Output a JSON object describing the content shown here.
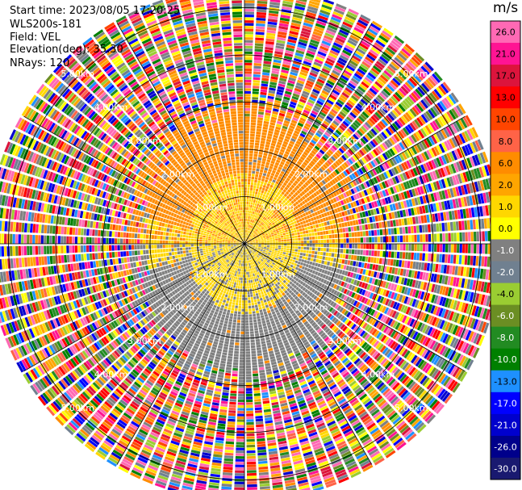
{
  "header": {
    "start_time": "Start time: 2023/08/05 17:20:25",
    "instrument": "WLS200s-181",
    "field": "Field: VEL",
    "elevation": "Elevation(deg): 35.30",
    "nrays": "NRays: 120"
  },
  "chart_data": {
    "type": "heatmap",
    "projection": "polar-ppi",
    "field": "VEL",
    "units": "m/s",
    "range_rings_km": [
      1.0,
      2.0,
      3.0,
      4.0,
      5.0
    ],
    "range_ring_labels": [
      "1.00km",
      "2.00km",
      "3.00km",
      "4.00km",
      "5.00km"
    ],
    "max_range_km": 5.4,
    "nrays": 120,
    "azimuth_spokes_deg": [
      0,
      30,
      60,
      90,
      120,
      150,
      180,
      210,
      240,
      270,
      300,
      330
    ],
    "colorbar": {
      "label": "m/s",
      "ticks": [
        26.0,
        21.0,
        17.0,
        13.0,
        10.0,
        8.0,
        6.0,
        2.0,
        1.0,
        0.0,
        -1.0,
        -2.0,
        -4.0,
        -6.0,
        -8.0,
        -10.0,
        -13.0,
        -17.0,
        -21.0,
        -26.0,
        -30.0
      ],
      "tick_labels": [
        "26.0",
        "21.0",
        "17.0",
        "13.0",
        "10.0",
        "8.0",
        "6.0",
        "2.0",
        "1.0",
        "0.0",
        "-1.0",
        "-2.0",
        "-4.0",
        "-6.0",
        "-8.0",
        "-10.0",
        "-13.0",
        "-17.0",
        "-21.0",
        "-26.0",
        "-30.0"
      ],
      "colors": [
        "#ff69b4",
        "#ff1493",
        "#dc143c",
        "#ff0000",
        "#ff4500",
        "#ff6347",
        "#ff8c00",
        "#ffa500",
        "#ffd700",
        "#ffff00",
        "#808080",
        "#708090",
        "#9acd32",
        "#6b8e23",
        "#228b22",
        "#008000",
        "#1e90ff",
        "#0000ff",
        "#0000cd",
        "#00008b",
        "#191970"
      ]
    },
    "data_pattern": {
      "near_field_velocity_ms": [
        -2.0,
        2.0
      ],
      "north_sector_ms": 2.0,
      "south_sector_ms": -2.0,
      "far_field": "noise"
    }
  }
}
